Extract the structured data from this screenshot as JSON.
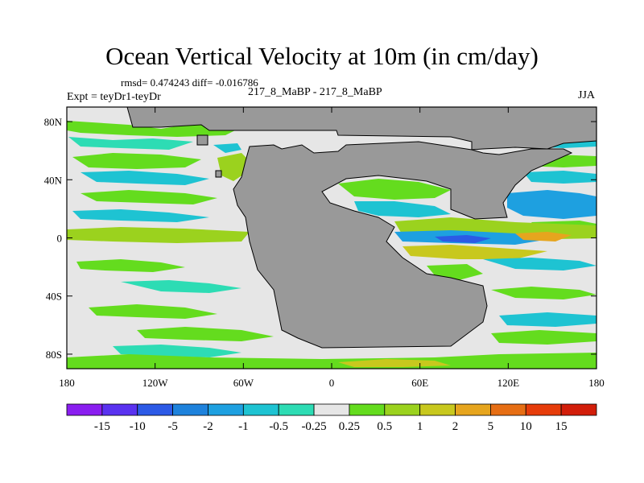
{
  "figure": {
    "title": "Ocean Vertical Velocity at 10m (in cm/day)",
    "stats": "rmsd= 0.474243 diff= -0.016786",
    "subtitle": "217_8_MaBP - 217_8_MaBP",
    "left_label": "Expt = teyDr1-teyDr",
    "season": "JJA"
  },
  "map": {
    "lon_range": [
      -180,
      180
    ],
    "lat_range": [
      -90,
      90
    ],
    "lat_ticks": [
      {
        "value": 80,
        "label": "80N"
      },
      {
        "value": 40,
        "label": "40N"
      },
      {
        "value": 0,
        "label": "0"
      },
      {
        "value": -40,
        "label": "40S"
      },
      {
        "value": -80,
        "label": "80S"
      }
    ],
    "lon_ticks": [
      {
        "value": -180,
        "label": "180"
      },
      {
        "value": -120,
        "label": "120W"
      },
      {
        "value": -60,
        "label": "60W"
      },
      {
        "value": 0,
        "label": "0"
      },
      {
        "value": 60,
        "label": "60E"
      },
      {
        "value": 120,
        "label": "120E"
      },
      {
        "value": 180,
        "label": "180"
      }
    ],
    "colors": {
      "land": "#999999",
      "background": "#e6e6e6"
    }
  },
  "colorbar": {
    "labels": [
      "-15",
      "-10",
      "-5",
      "-2",
      "-1",
      "-0.5",
      "-0.25",
      "0.25",
      "0.5",
      "1",
      "2",
      "5",
      "10",
      "15"
    ],
    "colors": [
      "#8a1ef0",
      "#5a32f0",
      "#2c5ae6",
      "#1e82dc",
      "#1ea0e0",
      "#1ec3d2",
      "#2ddcb4",
      "#e6e6e6",
      "#64dc1e",
      "#9bd21e",
      "#c8c81e",
      "#e6a51e",
      "#e66e14",
      "#e63c0a",
      "#d21e0a"
    ]
  }
}
